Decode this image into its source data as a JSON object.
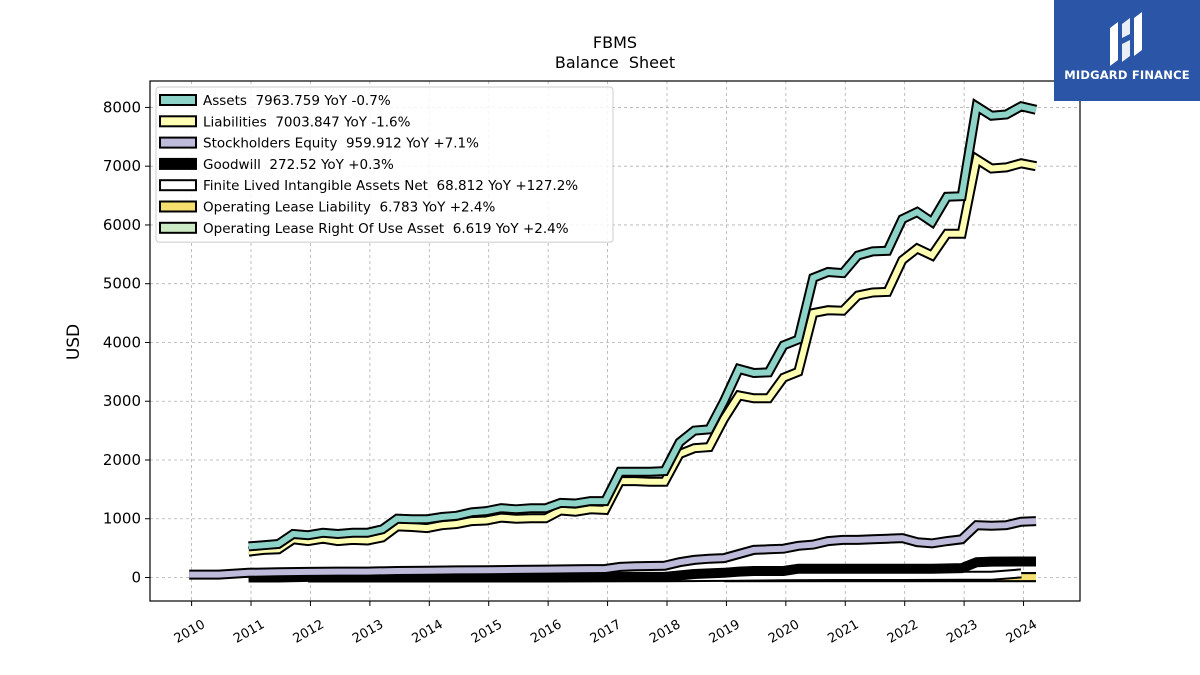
{
  "brand": {
    "name": "MIDGARD FINANCE"
  },
  "chart_data": {
    "type": "line",
    "title": "FBMS",
    "subtitle": "Balance  Sheet",
    "xlabel": "",
    "ylabel": "USD",
    "xlim": [
      2009.3,
      2024.95
    ],
    "ylim": [
      -400,
      8450
    ],
    "yticks": [
      0,
      1000,
      2000,
      3000,
      4000,
      5000,
      6000,
      7000,
      8000
    ],
    "xticks": [
      2010,
      2011,
      2012,
      2013,
      2014,
      2015,
      2016,
      2017,
      2018,
      2019,
      2020,
      2021,
      2022,
      2023,
      2024
    ],
    "grid": true,
    "legend_position": "upper-left",
    "series": [
      {
        "name": "Assets",
        "legend": "Assets  7963.759 YoY -0.7%",
        "color": "#8dd3c7",
        "x": [
          2010.96,
          2011.21,
          2011.46,
          2011.71,
          2011.96,
          2012.21,
          2012.46,
          2012.71,
          2012.96,
          2013.21,
          2013.46,
          2013.71,
          2013.96,
          2014.21,
          2014.46,
          2014.71,
          2014.96,
          2015.21,
          2015.46,
          2015.71,
          2015.96,
          2016.21,
          2016.46,
          2016.71,
          2016.96,
          2017.21,
          2017.46,
          2017.71,
          2017.96,
          2018.21,
          2018.46,
          2018.71,
          2018.96,
          2019.21,
          2019.46,
          2019.71,
          2019.96,
          2020.21,
          2020.46,
          2020.71,
          2020.96,
          2021.21,
          2021.46,
          2021.71,
          2021.96,
          2022.21,
          2022.46,
          2022.71,
          2022.96,
          2023.21,
          2023.46,
          2023.71,
          2023.96,
          2024.21
        ],
        "values": [
          530,
          550,
          570,
          740,
          720,
          760,
          740,
          760,
          760,
          820,
          1000,
          990,
          990,
          1030,
          1050,
          1110,
          1130,
          1180,
          1160,
          1180,
          1180,
          1270,
          1260,
          1300,
          1300,
          1800,
          1800,
          1800,
          1810,
          2300,
          2500,
          2520,
          3000,
          3550,
          3480,
          3490,
          3950,
          4050,
          5100,
          5200,
          5180,
          5480,
          5550,
          5560,
          6100,
          6220,
          6050,
          6480,
          6490,
          8020,
          7860,
          7880,
          8020,
          7960
        ]
      },
      {
        "name": "Liabilities",
        "legend": "Liabilities  7003.847 YoY -1.6%",
        "color": "#ffffb3",
        "x": [
          2010.96,
          2011.21,
          2011.46,
          2011.71,
          2011.96,
          2012.21,
          2012.46,
          2012.71,
          2012.96,
          2013.21,
          2013.46,
          2013.71,
          2013.96,
          2014.21,
          2014.46,
          2014.71,
          2014.96,
          2015.21,
          2015.46,
          2015.71,
          2015.96,
          2016.21,
          2016.46,
          2016.71,
          2016.96,
          2017.21,
          2017.46,
          2017.71,
          2017.96,
          2018.21,
          2018.46,
          2018.71,
          2018.96,
          2019.21,
          2019.46,
          2019.71,
          2019.96,
          2020.21,
          2020.46,
          2020.71,
          2020.96,
          2021.21,
          2021.46,
          2021.71,
          2021.96,
          2022.21,
          2022.46,
          2022.71,
          2022.96,
          2023.21,
          2023.46,
          2023.71,
          2023.96,
          2024.21
        ],
        "values": [
          440,
          470,
          480,
          650,
          620,
          660,
          620,
          640,
          630,
          680,
          870,
          860,
          840,
          890,
          910,
          960,
          970,
          1020,
          1000,
          1010,
          1010,
          1140,
          1120,
          1160,
          1150,
          1640,
          1640,
          1630,
          1630,
          2100,
          2200,
          2220,
          2700,
          3100,
          3050,
          3050,
          3400,
          3500,
          4500,
          4550,
          4540,
          4800,
          4850,
          4860,
          5400,
          5600,
          5480,
          5850,
          5850,
          7120,
          6960,
          6980,
          7050,
          7000
        ]
      },
      {
        "name": "Stockholders Equity",
        "legend": "Stockholders Equity  959.912 YoY +7.1%",
        "color": "#bebada",
        "x": [
          2009.96,
          2010.46,
          2010.96,
          2011.46,
          2011.96,
          2012.46,
          2012.96,
          2013.46,
          2013.96,
          2014.46,
          2014.96,
          2015.46,
          2015.96,
          2016.46,
          2016.96,
          2017.21,
          2017.46,
          2017.96,
          2018.21,
          2018.46,
          2018.71,
          2018.96,
          2019.21,
          2019.46,
          2019.71,
          2019.96,
          2020.21,
          2020.46,
          2020.71,
          2020.96,
          2021.21,
          2021.46,
          2021.71,
          2021.96,
          2022.21,
          2022.46,
          2022.71,
          2022.96,
          2023.21,
          2023.46,
          2023.71,
          2023.96,
          2024.21
        ],
        "values": [
          50,
          50,
          80,
          90,
          95,
          100,
          100,
          110,
          115,
          120,
          125,
          130,
          135,
          140,
          145,
          180,
          190,
          200,
          260,
          300,
          320,
          330,
          400,
          470,
          480,
          490,
          540,
          560,
          620,
          640,
          640,
          650,
          660,
          670,
          600,
          580,
          620,
          650,
          890,
          880,
          890,
          950,
          960
        ]
      },
      {
        "name": "Goodwill",
        "legend": "Goodwill  272.52 YoY +0.3%",
        "color": "#000000",
        "x": [
          2010.96,
          2011.46,
          2011.96,
          2012.46,
          2012.96,
          2013.46,
          2013.96,
          2014.46,
          2014.96,
          2015.46,
          2015.96,
          2016.46,
          2016.96,
          2017.46,
          2017.96,
          2018.46,
          2018.96,
          2019.21,
          2019.46,
          2019.96,
          2020.21,
          2020.96,
          2021.46,
          2021.96,
          2022.46,
          2022.96,
          2023.21,
          2023.46,
          2023.96,
          2024.21
        ],
        "values": [
          0,
          0,
          10,
          10,
          10,
          10,
          10,
          10,
          10,
          10,
          10,
          10,
          10,
          10,
          10,
          60,
          80,
          100,
          110,
          110,
          150,
          150,
          150,
          150,
          150,
          160,
          260,
          270,
          272,
          272
        ]
      },
      {
        "name": "Finite Lived Intangible Assets Net",
        "legend": "Finite Lived Intangible Assets Net  68.812 YoY +127.2%",
        "color": "#ffffff",
        "x": [
          2011.96,
          2013.96,
          2015.96,
          2017.96,
          2018.96,
          2019.96,
          2020.96,
          2021.96,
          2022.96,
          2023.46,
          2023.96
        ],
        "values": [
          0,
          0,
          0,
          5,
          10,
          20,
          25,
          25,
          30,
          30,
          69
        ]
      },
      {
        "name": "Operating Lease Liability",
        "legend": "Operating Lease Liability  6.783 YoY +2.4%",
        "color": "#f5df6e",
        "x": [
          2018.96,
          2020.96,
          2022.96,
          2024.21
        ],
        "values": [
          6,
          6.5,
          6.6,
          6.8
        ]
      },
      {
        "name": "Operating Lease Right Of Use Asset",
        "legend": "Operating Lease Right Of Use Asset  6.619 YoY +2.4%",
        "color": "#ccebc5",
        "x": [
          2018.96,
          2020.96,
          2022.96,
          2024.21
        ],
        "values": [
          6,
          6.3,
          6.5,
          6.6
        ]
      }
    ]
  }
}
